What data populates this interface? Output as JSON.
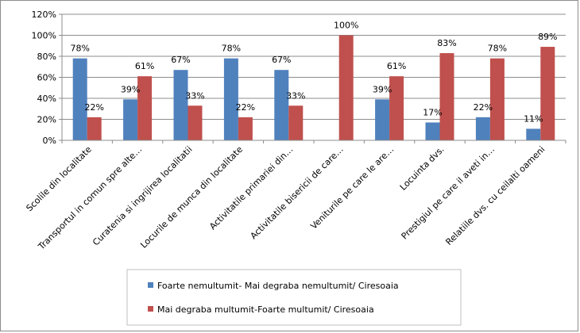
{
  "chart_data": {
    "type": "bar",
    "categories": [
      "Scolile din localitate",
      "Transportul in comun spre alte…",
      "Curatenia si ingrijirea localitatii",
      "Locurile de munca din localitate",
      "Activitatile primariei din…",
      "Activitatile bisericii de care…",
      "Veniturile pe care le are…",
      "Locuinta dvs.",
      "Prestigiul pe care il aveti in…",
      "Relatiile dvs. cu ceilalti oameni"
    ],
    "series": [
      {
        "name": "Foarte nemultumit- Mai degraba nemultumit/ Ciresoaia",
        "color": "#4f81bd",
        "values": [
          78,
          39,
          67,
          78,
          67,
          null,
          39,
          17,
          22,
          11
        ],
        "labels": [
          "78%",
          "39%",
          "67%",
          "78%",
          "67%",
          "",
          "39%",
          "17%",
          "22%",
          "11%"
        ]
      },
      {
        "name": "Mai degraba multumit-Foarte multumit/ Ciresoaia",
        "color": "#c0504d",
        "values": [
          22,
          61,
          33,
          22,
          33,
          100,
          61,
          83,
          78,
          89
        ],
        "labels": [
          "22%",
          "61%",
          "33%",
          "22%",
          "33%",
          "100%",
          "61%",
          "83%",
          "78%",
          "89%"
        ]
      }
    ],
    "ylim": [
      0,
      120
    ],
    "yticks": [
      0,
      20,
      40,
      60,
      80,
      100,
      120
    ],
    "ytick_labels": [
      "0%",
      "20%",
      "40%",
      "60%",
      "80%",
      "100%",
      "120%"
    ],
    "grid": true,
    "legend_position": "bottom"
  }
}
